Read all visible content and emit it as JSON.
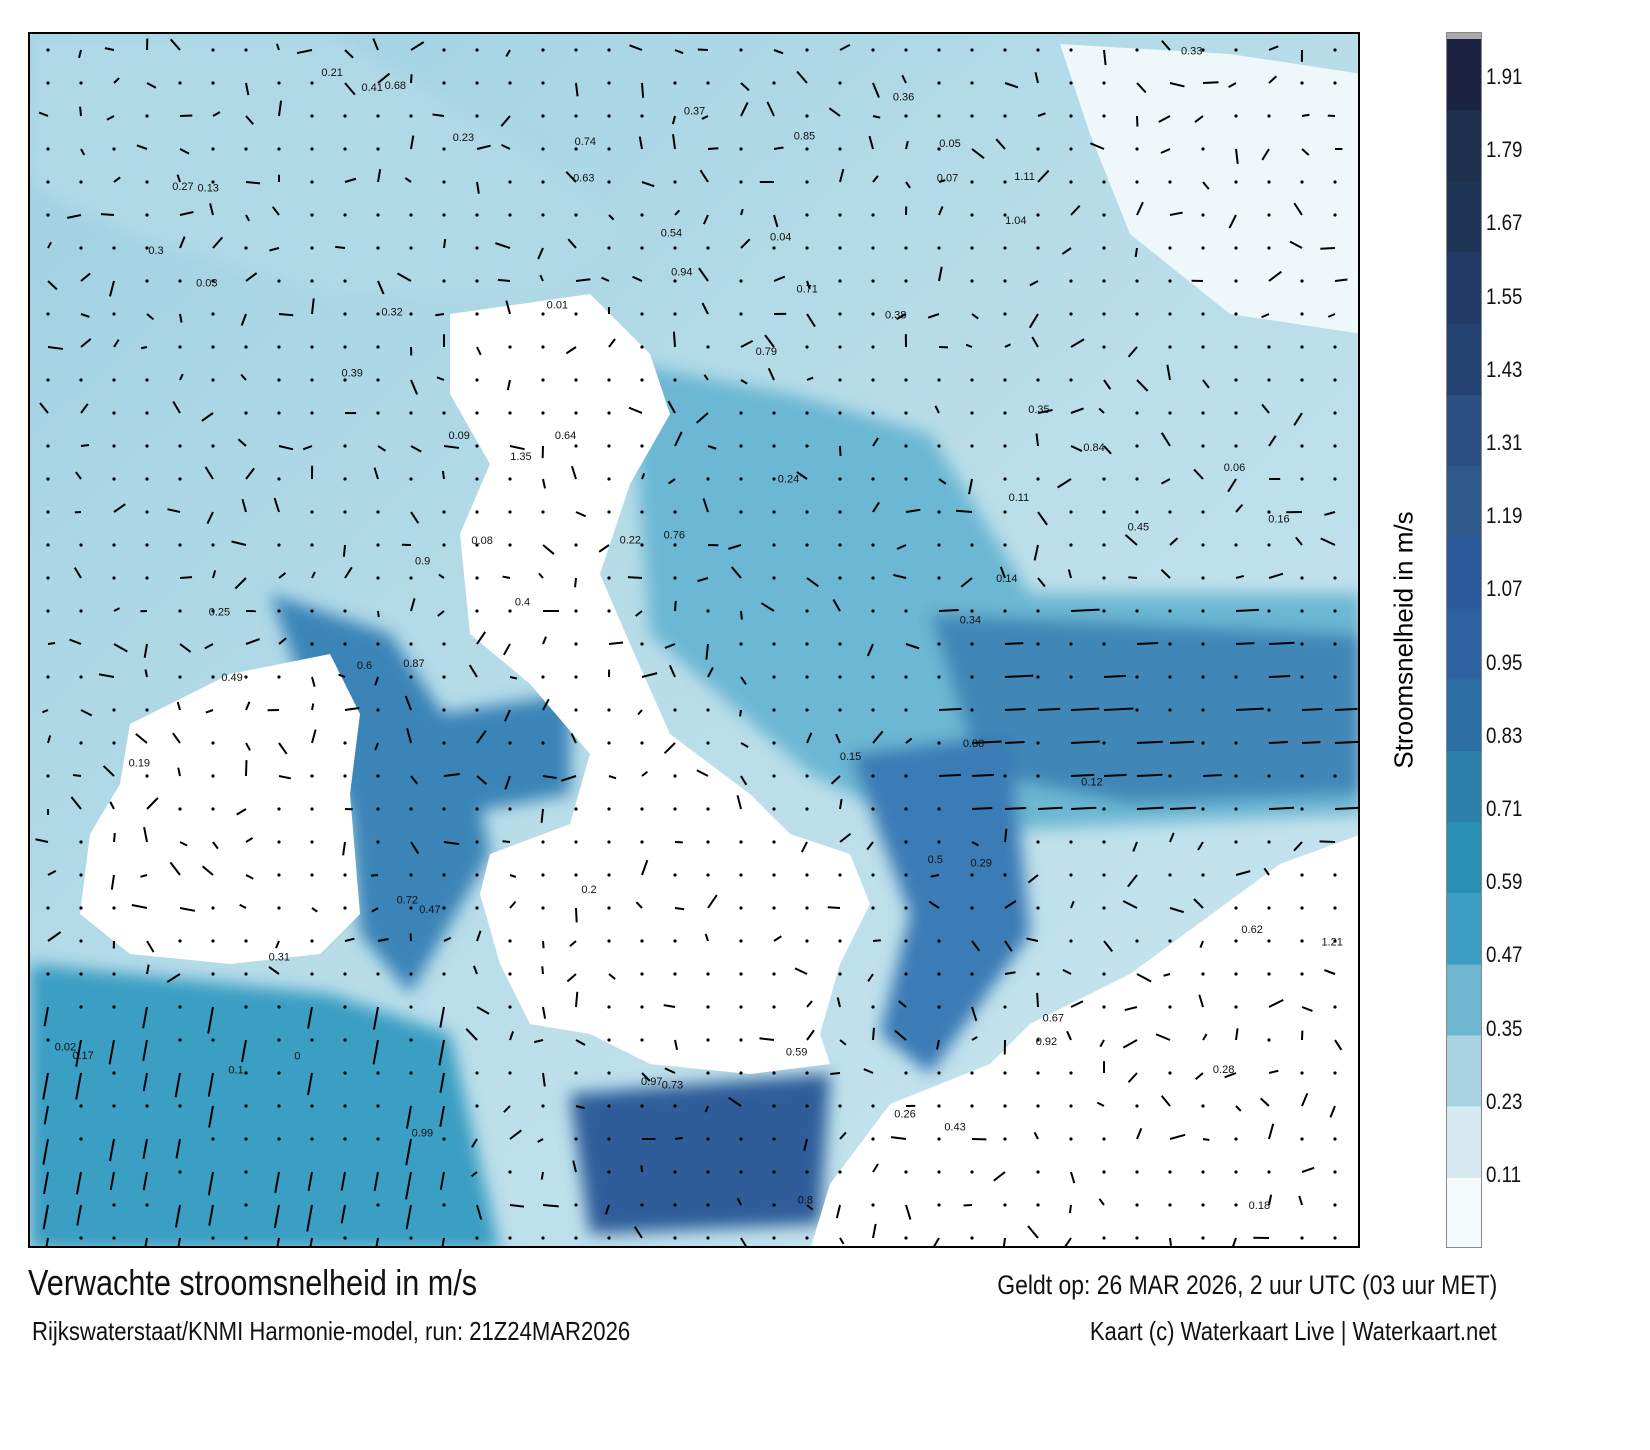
{
  "title": "Verwachte stroomsnelheid in m/s",
  "valid_time": "Geldt op: 26 MAR 2026, 2 uur UTC (03 uur MET)",
  "source": "Rijkswaterstaat/KNMI Harmonie-model, run: 21Z24MAR2026",
  "credit": "Kaart (c) Waterkaart Live | Waterkaart.net",
  "colorbar": {
    "label": "Stroomsnelheid in m/s",
    "ticks": [
      "1.91",
      "1.79",
      "1.67",
      "1.55",
      "1.43",
      "1.31",
      "1.19",
      "1.07",
      "0.95",
      "0.83",
      "0.71",
      "0.59",
      "0.47",
      "0.35",
      "0.23",
      "0.11"
    ],
    "colors": [
      "#f4f9fb",
      "#d6eaf1",
      "#a9d3e3",
      "#6fb6d0",
      "#3c9fc2",
      "#2a8fb5",
      "#2b80aa",
      "#2c6ea3",
      "#2d62a0",
      "#2a5a9a",
      "#2d5a8a",
      "#2a4f80",
      "#244372",
      "#233a66",
      "#1f3556",
      "#1c2f4c",
      "#1c2342"
    ],
    "over_color": "#aaaaaa"
  },
  "map": {
    "sea_color": "#9fd0e2",
    "land_color": "#ffffff",
    "channel_color": "#2f63a4",
    "speed_labels": [
      "0.32",
      "0.09",
      "0.12",
      "0.19",
      "0.17",
      "0.18",
      "0.29",
      "0.11",
      "0.25",
      "0.24",
      "0.21",
      "0.13",
      "0.08",
      "0.06",
      "0.03",
      "0.15",
      "0.31",
      "0.14",
      "0.07",
      "0.05",
      "0.04",
      "0.02",
      "0.01",
      "0.16",
      "0.22",
      "0.26",
      "0.28",
      "0.35",
      "0.38",
      "0.4",
      "0.43",
      "0.45",
      "0.47",
      "0.54",
      "0.63",
      "0.68",
      "0.59",
      "0.74",
      "0.76",
      "0.92",
      "0.5",
      "0.49",
      "0.62",
      "0.71",
      "0.84",
      "0.87",
      "0.88",
      "0.85",
      "0.64",
      "0.79",
      "0.8",
      "0.99",
      "0.9",
      "0.97",
      "0.72",
      "0.67",
      "0.6",
      "1.11",
      "1.35",
      "1.21",
      "1.04",
      "0.94",
      "0.73",
      "0.41",
      "0.34",
      "0.27",
      "0.37",
      "0.39",
      "0.33",
      "0.36",
      "0.3",
      "0.23",
      "0.2",
      "0.1",
      "0"
    ]
  }
}
